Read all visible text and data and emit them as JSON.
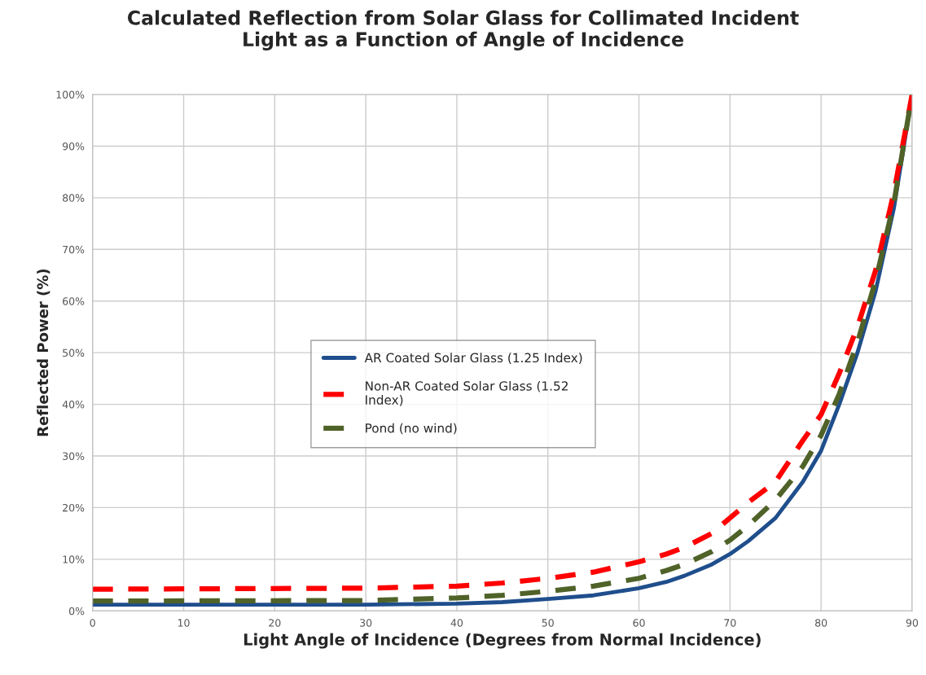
{
  "chart_data": {
    "type": "line",
    "title": "Calculated Reflection from Solar Glass for Collimated Incident\nLight as a Function of Angle of Incidence",
    "xlabel": "Light Angle of Incidence (Degrees from Normal Incidence)",
    "ylabel": "Reflected Power (%)",
    "x": [
      0,
      30,
      40,
      45,
      50,
      55,
      60,
      63,
      65,
      68,
      70,
      72,
      75,
      78,
      80,
      82,
      84,
      86,
      88,
      90
    ],
    "series": [
      {
        "name": "AR Coated Solar Glass (1.25 Index)",
        "color": "#1f4e8c",
        "line_style": "solid",
        "values": [
          1.2,
          1.2,
          1.4,
          1.7,
          2.3,
          3.0,
          4.4,
          5.6,
          6.8,
          9.0,
          11,
          13.5,
          18,
          25,
          31,
          40,
          50,
          62,
          78,
          100
        ]
      },
      {
        "name": "Non-AR Coated Solar Glass (1.52\nIndex)",
        "color": "#ff0000",
        "line_style": "dashed",
        "values": [
          4.2,
          4.4,
          4.8,
          5.4,
          6.3,
          7.5,
          9.5,
          11,
          12.3,
          15,
          18,
          21,
          25,
          33,
          38,
          46,
          55,
          66,
          81,
          100
        ]
      },
      {
        "name": "Pond (no wind)",
        "color": "#4f6228",
        "line_style": "dashed",
        "values": [
          1.9,
          2.0,
          2.5,
          3.0,
          3.8,
          4.8,
          6.3,
          7.8,
          9.0,
          11.5,
          13.7,
          16.5,
          21.5,
          28,
          34,
          42,
          52,
          64,
          79,
          100
        ]
      }
    ],
    "xlim": [
      0,
      90
    ],
    "xticks": [
      0,
      10,
      20,
      30,
      40,
      50,
      60,
      70,
      80,
      90
    ],
    "ylim": [
      0,
      100
    ],
    "yticks": [
      {
        "value": 0,
        "label": "0%"
      },
      {
        "value": 10,
        "label": "10%"
      },
      {
        "value": 20,
        "label": "20%"
      },
      {
        "value": 30,
        "label": "30%"
      },
      {
        "value": 40,
        "label": "40%"
      },
      {
        "value": 50,
        "label": "50%"
      },
      {
        "value": 60,
        "label": "60%"
      },
      {
        "value": 70,
        "label": "70%"
      },
      {
        "value": 80,
        "label": "80%"
      },
      {
        "value": 90,
        "label": "90%"
      },
      {
        "value": 100,
        "label": "100%"
      }
    ],
    "grid": true,
    "legend": "center",
    "marker": "none"
  }
}
